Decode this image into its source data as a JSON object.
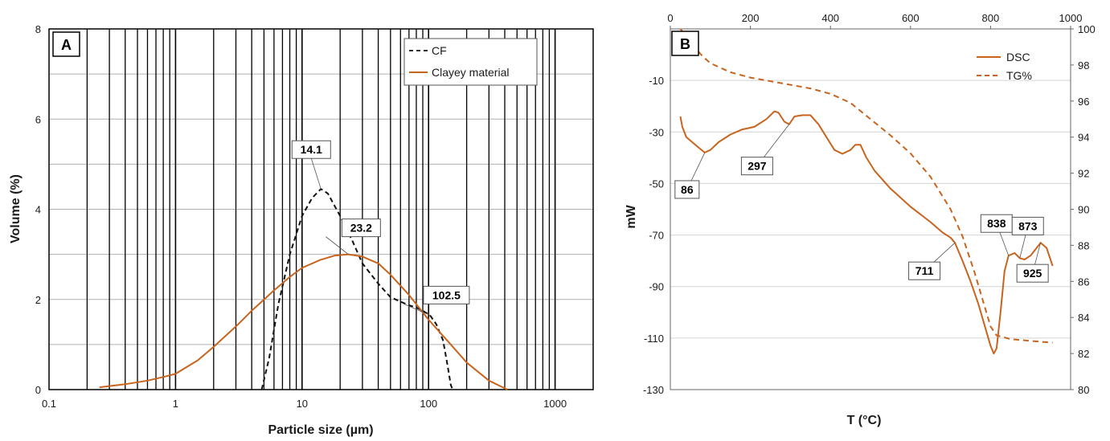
{
  "colors": {
    "orange": "#c8641e",
    "black": "#111111",
    "grid": "#b0b0b0"
  },
  "chart_data": [
    {
      "panel_label": "A",
      "type": "line",
      "x_scale": "log",
      "xlim": [
        0.1,
        2000
      ],
      "ylim": [
        0,
        8
      ],
      "xlabel": "Particle size (µm)",
      "ylabel": "Volume (%)",
      "x_tick_labels": [
        "0.1",
        "1",
        "10",
        "100",
        "1000"
      ],
      "x_ticks": [
        0.1,
        1,
        10,
        100,
        1000
      ],
      "y_ticks": [
        0,
        2,
        4,
        6,
        8
      ],
      "y_tick_labels": [
        "0",
        "2",
        "4",
        "6",
        "8"
      ],
      "grid": "log-decade vertical lines and horizontal lines every 1%",
      "legend_position": "top-right",
      "series": [
        {
          "name": "CF",
          "style": "dashed",
          "color": "#111111",
          "points": [
            [
              4.8,
              0
            ],
            [
              5.5,
              0.7
            ],
            [
              6.5,
              1.9
            ],
            [
              8,
              3
            ],
            [
              10,
              3.85
            ],
            [
              12,
              4.25
            ],
            [
              14.1,
              4.45
            ],
            [
              16,
              4.35
            ],
            [
              20,
              3.85
            ],
            [
              25,
              3.3
            ],
            [
              30,
              2.8
            ],
            [
              40,
              2.35
            ],
            [
              50,
              2.05
            ],
            [
              60,
              1.95
            ],
            [
              70,
              1.87
            ],
            [
              80,
              1.82
            ],
            [
              90,
              1.75
            ],
            [
              102.5,
              1.65
            ],
            [
              115,
              1.45
            ],
            [
              130,
              1.1
            ],
            [
              140,
              0.6
            ],
            [
              150,
              0.1
            ],
            [
              155,
              0
            ]
          ]
        },
        {
          "name": "Clayey material",
          "style": "solid",
          "color": "#c8641e",
          "points": [
            [
              0.25,
              0.05
            ],
            [
              0.4,
              0.12
            ],
            [
              0.6,
              0.2
            ],
            [
              0.8,
              0.28
            ],
            [
              1,
              0.35
            ],
            [
              1.5,
              0.65
            ],
            [
              2,
              0.95
            ],
            [
              3,
              1.4
            ],
            [
              4,
              1.75
            ],
            [
              6,
              2.2
            ],
            [
              8,
              2.5
            ],
            [
              10,
              2.7
            ],
            [
              14,
              2.88
            ],
            [
              18,
              2.97
            ],
            [
              23.2,
              3.0
            ],
            [
              30,
              2.95
            ],
            [
              40,
              2.8
            ],
            [
              50,
              2.55
            ],
            [
              70,
              2.1
            ],
            [
              100,
              1.55
            ],
            [
              150,
              1.0
            ],
            [
              200,
              0.6
            ],
            [
              300,
              0.2
            ],
            [
              420,
              0
            ]
          ]
        }
      ],
      "annotations": [
        {
          "label": "14.1",
          "x": 14.1,
          "y": 4.45
        },
        {
          "label": "23.2",
          "x": 23.2,
          "y": 3.0
        },
        {
          "label": "102.5",
          "x": 102.5,
          "y": 1.65
        }
      ]
    },
    {
      "panel_label": "B",
      "type": "line",
      "xlim": [
        0,
        1000
      ],
      "x_ticks": [
        0,
        200,
        400,
        600,
        800,
        1000
      ],
      "x_tick_labels": [
        "0",
        "200",
        "400",
        "600",
        "800",
        "1000"
      ],
      "xlabel": "T (°C)",
      "ylabel": "mW",
      "y_left_lim": [
        -130,
        10
      ],
      "y_left_ticks": [
        -130,
        -110,
        -90,
        -70,
        -50,
        -30,
        -10
      ],
      "y_left_tick_labels": [
        "-130",
        "-110",
        "-90",
        "-70",
        "-50",
        "-30",
        "-10"
      ],
      "y_right_lim": [
        80,
        100
      ],
      "y_right_ticks": [
        80,
        82,
        84,
        86,
        88,
        90,
        92,
        94,
        96,
        98,
        100
      ],
      "y_right_tick_labels": [
        "80",
        "82",
        "84",
        "86",
        "88",
        "90",
        "92",
        "94",
        "96",
        "98",
        "100"
      ],
      "grid": "horizontal lines at left-axis ticks",
      "legend_position": "top-right",
      "series": [
        {
          "name": "DSC",
          "axis": "left",
          "style": "solid",
          "color": "#c8641e",
          "points": [
            [
              25,
              -24
            ],
            [
              30,
              -28
            ],
            [
              40,
              -32
            ],
            [
              55,
              -34
            ],
            [
              70,
              -36
            ],
            [
              86,
              -38
            ],
            [
              100,
              -37
            ],
            [
              120,
              -34
            ],
            [
              150,
              -31
            ],
            [
              180,
              -29
            ],
            [
              210,
              -28
            ],
            [
              240,
              -25
            ],
            [
              260,
              -22
            ],
            [
              270,
              -22.5
            ],
            [
              285,
              -26
            ],
            [
              297,
              -27
            ],
            [
              310,
              -24
            ],
            [
              330,
              -23.5
            ],
            [
              350,
              -23.5
            ],
            [
              370,
              -27
            ],
            [
              390,
              -32
            ],
            [
              410,
              -37
            ],
            [
              430,
              -38.5
            ],
            [
              450,
              -37
            ],
            [
              462,
              -35
            ],
            [
              475,
              -35
            ],
            [
              490,
              -40
            ],
            [
              510,
              -45
            ],
            [
              550,
              -52
            ],
            [
              600,
              -59
            ],
            [
              650,
              -65
            ],
            [
              680,
              -69
            ],
            [
              700,
              -71
            ],
            [
              711,
              -73
            ],
            [
              730,
              -80
            ],
            [
              750,
              -88
            ],
            [
              770,
              -97
            ],
            [
              785,
              -105
            ],
            [
              800,
              -113
            ],
            [
              808,
              -116
            ],
            [
              815,
              -114
            ],
            [
              825,
              -100
            ],
            [
              835,
              -84
            ],
            [
              845,
              -78
            ],
            [
              860,
              -77
            ],
            [
              873,
              -79
            ],
            [
              885,
              -79.5
            ],
            [
              900,
              -78
            ],
            [
              915,
              -75
            ],
            [
              925,
              -73
            ],
            [
              940,
              -75
            ],
            [
              955,
              -82
            ]
          ]
        },
        {
          "name": "TG%",
          "axis": "right",
          "style": "dashed",
          "color": "#c8641e",
          "points": [
            [
              25,
              100
            ],
            [
              40,
              99.6
            ],
            [
              60,
              99
            ],
            [
              80,
              98.5
            ],
            [
              100,
              98.1
            ],
            [
              150,
              97.6
            ],
            [
              200,
              97.3
            ],
            [
              250,
              97.1
            ],
            [
              300,
              96.9
            ],
            [
              350,
              96.7
            ],
            [
              400,
              96.4
            ],
            [
              450,
              95.9
            ],
            [
              500,
              95.0
            ],
            [
              550,
              94.1
            ],
            [
              600,
              93.1
            ],
            [
              650,
              91.8
            ],
            [
              700,
              90.0
            ],
            [
              730,
              88.5
            ],
            [
              760,
              86.5
            ],
            [
              780,
              85.0
            ],
            [
              800,
              83.5
            ],
            [
              815,
              83.0
            ],
            [
              850,
              82.8
            ],
            [
              900,
              82.7
            ],
            [
              955,
              82.6
            ]
          ]
        }
      ],
      "annotations": [
        {
          "label": "86",
          "x": 86,
          "y": -38
        },
        {
          "label": "297",
          "x": 297,
          "y": -27
        },
        {
          "label": "711",
          "x": 711,
          "y": -73
        },
        {
          "label": "838",
          "x": 845,
          "y": -78
        },
        {
          "label": "873",
          "x": 873,
          "y": -79
        },
        {
          "label": "925",
          "x": 925,
          "y": -73
        }
      ]
    }
  ]
}
